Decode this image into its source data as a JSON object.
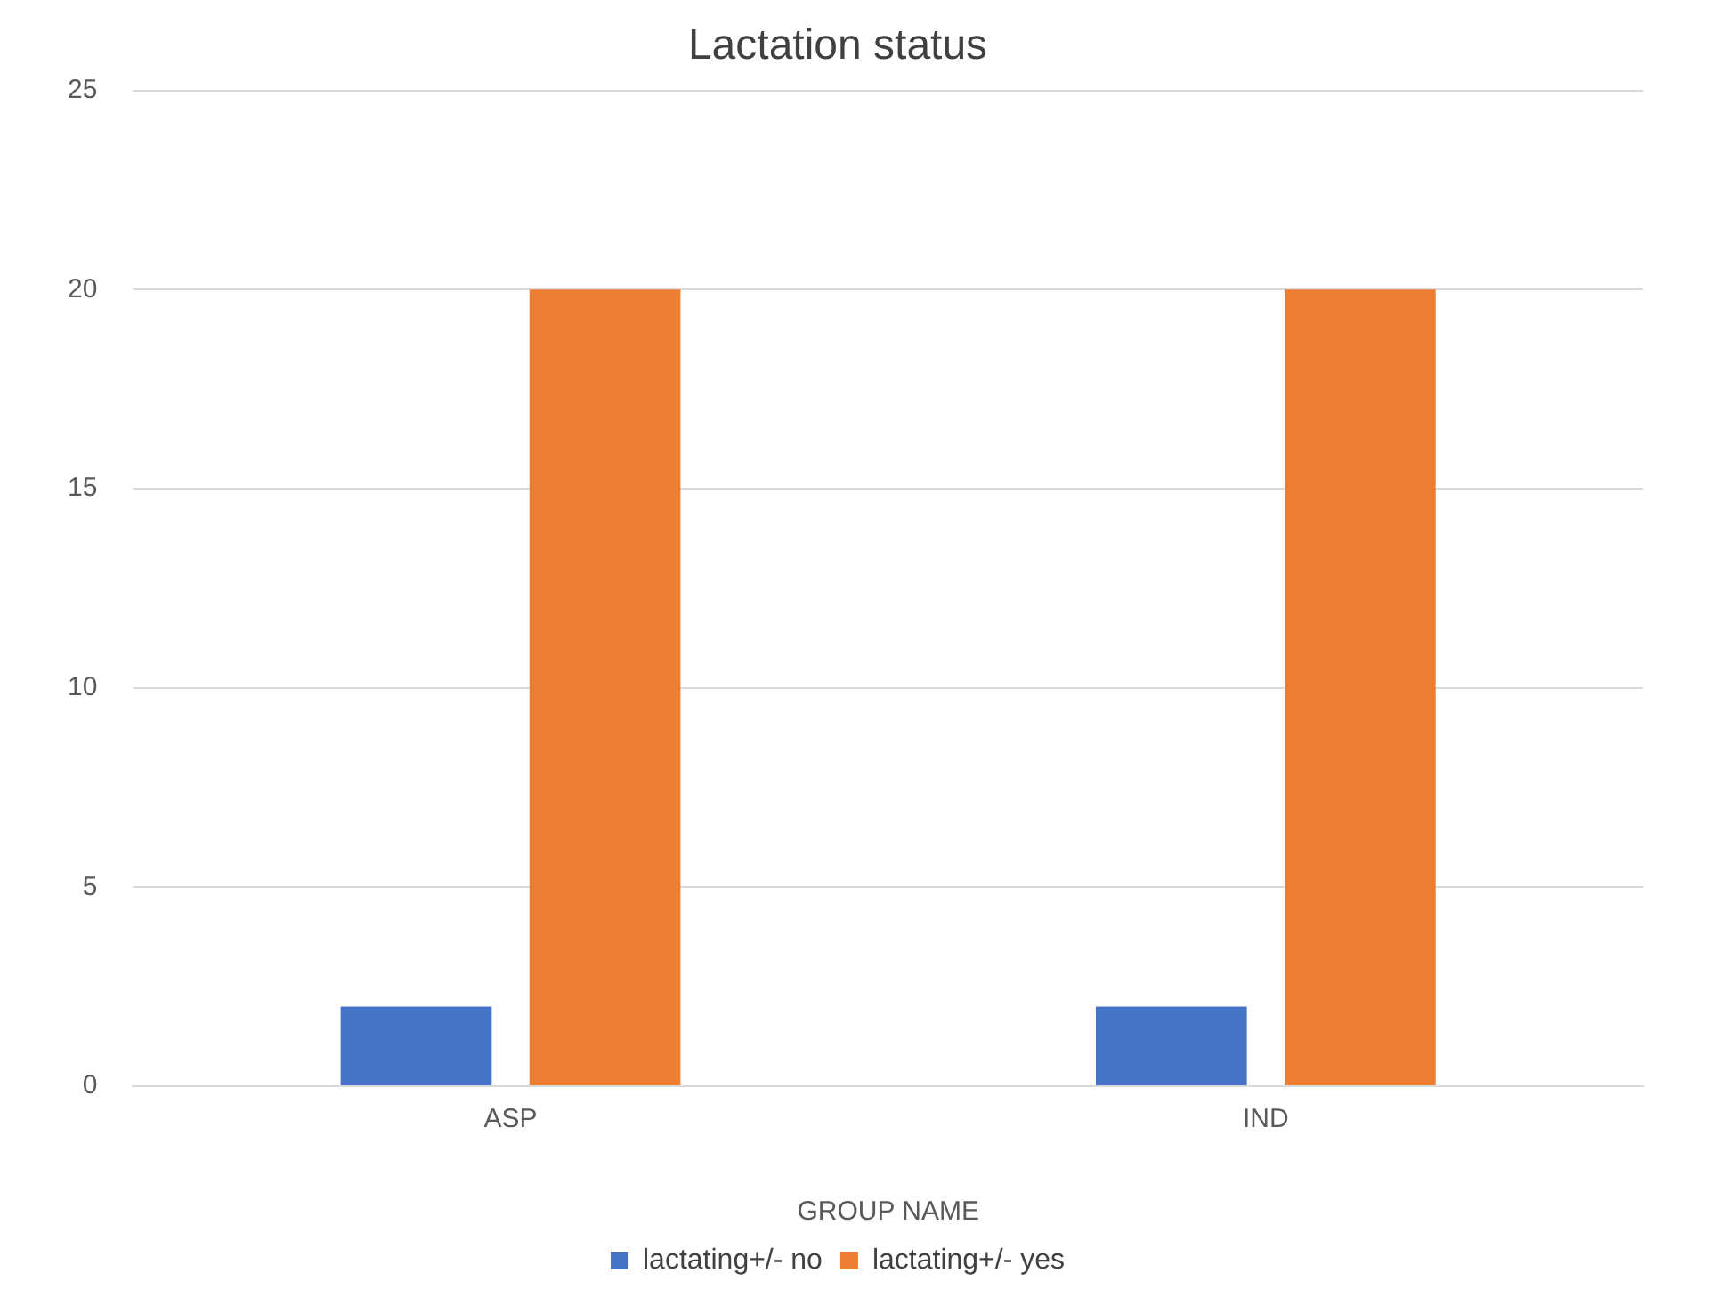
{
  "chart_data": {
    "type": "bar",
    "title": "Lactation status",
    "xlabel": "GROUP NAME",
    "categories": [
      "ASP",
      "IND"
    ],
    "series": [
      {
        "name": "lactating+/- no",
        "color": "#4472c4",
        "values": [
          2,
          2
        ]
      },
      {
        "name": "lactating+/- yes",
        "color": "#ed7d31",
        "values": [
          20,
          20
        ]
      }
    ],
    "ylim": [
      0,
      25
    ],
    "yticks": [
      0,
      5,
      10,
      15,
      20,
      25
    ],
    "grid": "y",
    "legend": "bottom"
  }
}
